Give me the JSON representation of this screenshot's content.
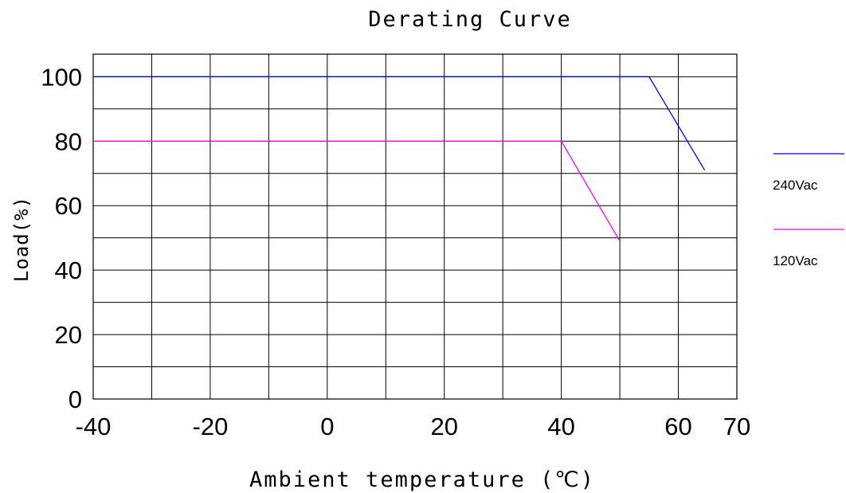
{
  "chart_data": {
    "type": "line",
    "title": "Derating Curve",
    "xlabel": "Ambient temperature (℃)",
    "ylabel": "Load(%)",
    "xlim": [
      -40,
      70
    ],
    "ylim": [
      0,
      107
    ],
    "x_ticks": [
      -40,
      -20,
      0,
      20,
      40,
      60,
      70
    ],
    "y_ticks": [
      0,
      20,
      40,
      60,
      80,
      100
    ],
    "x_grid": [
      -40,
      -30,
      -20,
      -10,
      0,
      10,
      20,
      30,
      40,
      50,
      60,
      70
    ],
    "y_grid": [
      0,
      10,
      20,
      30,
      40,
      50,
      60,
      70,
      80,
      90,
      100
    ],
    "grid": true,
    "legend_position": "right",
    "series": [
      {
        "name": "240Vac",
        "color": "#0000ff",
        "x": [
          -40,
          55,
          64.5
        ],
        "y": [
          100,
          100,
          71
        ]
      },
      {
        "name": "120Vac",
        "color": "#ff00ff",
        "x": [
          -40,
          40,
          50
        ],
        "y": [
          80,
          80,
          49
        ]
      }
    ]
  }
}
